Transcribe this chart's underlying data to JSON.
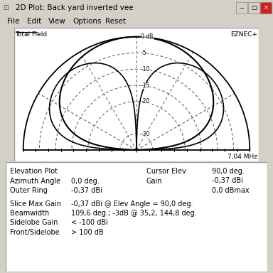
{
  "title": "2D Plot: Back yard inverted vee",
  "menu_items": [
    "File",
    "Edit",
    "View",
    "Options",
    "Reset"
  ],
  "plot_label_left": "Total Field",
  "plot_label_right": "EZNEC+",
  "freq_label": "7,04 MHz",
  "db_rings": [
    0,
    -5,
    -10,
    -15,
    -20,
    -30
  ],
  "db_labels": [
    "0 dB",
    "-5",
    "-10",
    "-15",
    "-20",
    "-30"
  ],
  "bg_color": "#d4d0c8",
  "plot_bg": "#ffffff",
  "title_bar_color": "#ece9d8",
  "border_color": "#808080",
  "solid_line_color": "#000000",
  "dashed_line_color": "#808080",
  "text_color": "#000000",
  "info_line1": [
    "Elevation Plot",
    "",
    "Cursor Elev",
    "90,0 deg."
  ],
  "info_line2": [
    "Azimuth Angle",
    "0,0 deg.",
    "Gain",
    "-0,37 dBi"
  ],
  "info_line3": [
    "Outer Ring",
    "-0,37 dBi",
    "",
    "0,0 dBmax"
  ],
  "extra_info": [
    [
      "Slice Max Gain",
      "-0,37 dBi @ Elev Angle = 90,0 deg."
    ],
    [
      "Beamwidth",
      "109,6 deg.; -3dB @ 35,2, 144,8 deg."
    ],
    [
      "Sidelobe Gain",
      "< -100 dBi"
    ],
    [
      "Front/Sidelobe",
      "> 100 dB"
    ]
  ],
  "spoke_angles_deg": [
    30,
    60,
    90,
    120,
    150
  ],
  "tick_count": 19,
  "pattern_n_exp": 1.26,
  "db_min": -35.0
}
